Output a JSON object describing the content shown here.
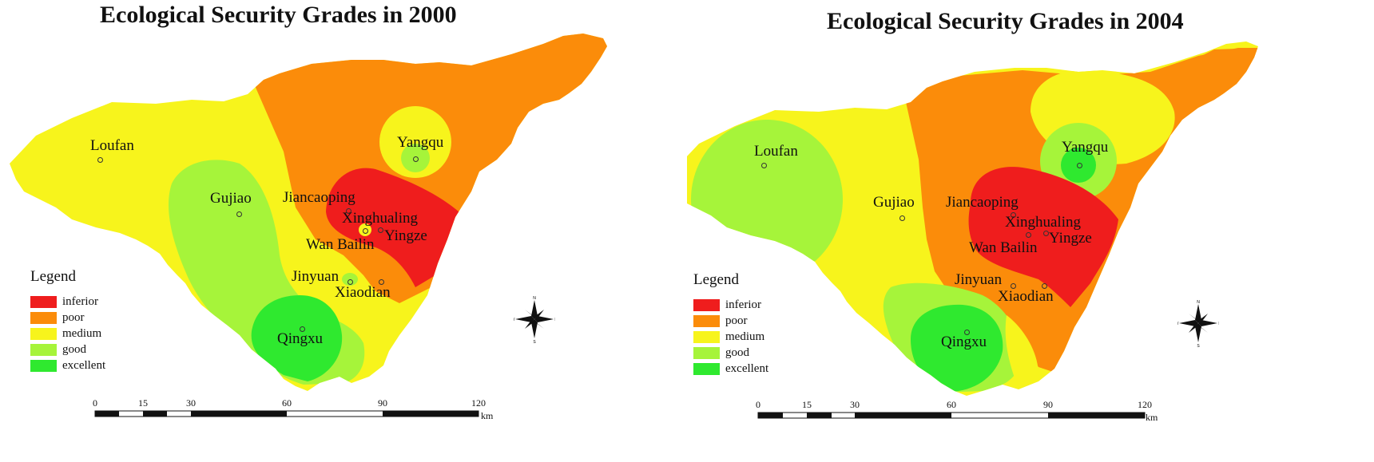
{
  "colors": {
    "inferior": "#ef1d1d",
    "poor": "#fb8c0a",
    "medium": "#f7f41c",
    "good": "#a6f43a",
    "excellent": "#2fe92f"
  },
  "maps": [
    {
      "title": "Ecological Security Grades in 2000",
      "places": [
        "Loufan",
        "Yangqu",
        "Gujiao",
        "Jiancaoping",
        "Xinghualing",
        "Yingze",
        "Wan Bailin",
        "Jinyuan",
        "Xiaodian",
        "Qingxu"
      ],
      "legend": {
        "title": "Legend",
        "items": [
          "inferior",
          "poor",
          "medium",
          "good",
          "excellent"
        ]
      },
      "scale": {
        "ticks": [
          "0",
          "15",
          "30",
          "60",
          "90",
          "120"
        ],
        "unit": "km"
      },
      "north_arrow_icon": "compass-rose-icon"
    },
    {
      "title": "Ecological Security Grades in 2004",
      "places": [
        "Loufan",
        "Yangqu",
        "Gujiao",
        "Jiancaoping",
        "Xinghualing",
        "Yingze",
        "Wan Bailin",
        "Jinyuan",
        "Xiaodian",
        "Qingxu"
      ],
      "legend": {
        "title": "Legend",
        "items": [
          "inferior",
          "poor",
          "medium",
          "good",
          "excellent"
        ]
      },
      "scale": {
        "ticks": [
          "0",
          "15",
          "30",
          "60",
          "90",
          "120"
        ],
        "unit": "km"
      },
      "north_arrow_icon": "compass-rose-icon"
    }
  ]
}
